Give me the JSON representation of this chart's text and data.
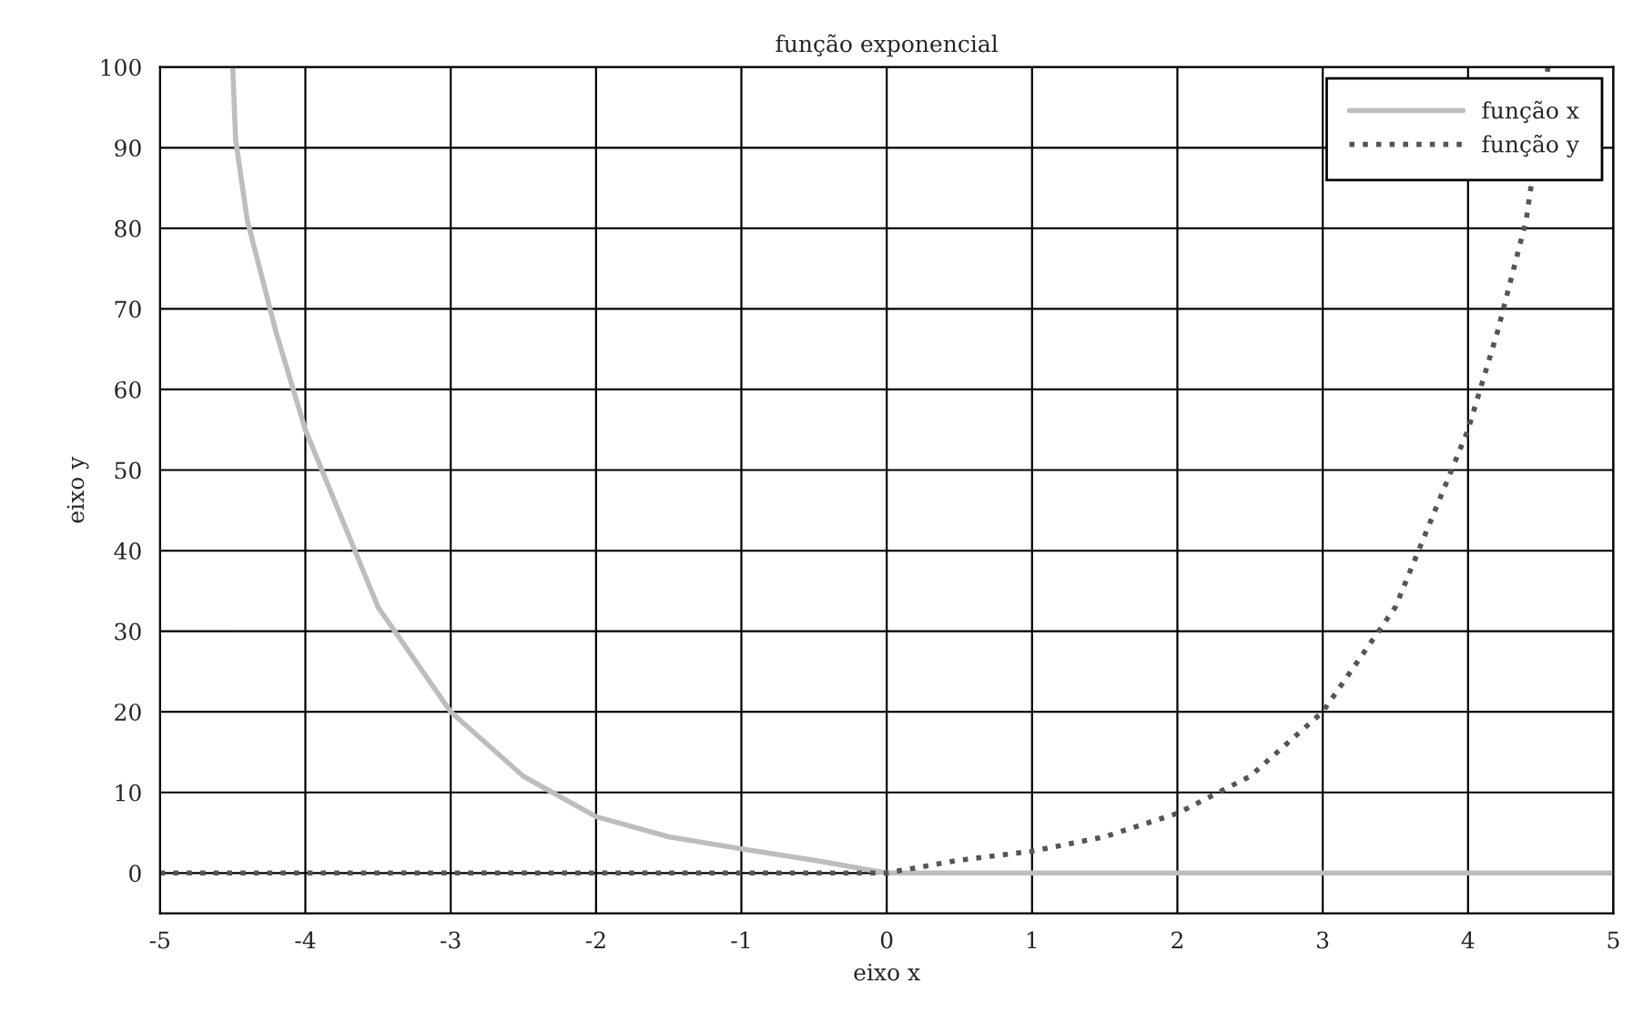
{
  "chart_data": {
    "type": "line",
    "title": "função exponencial",
    "xlabel": "eixo x",
    "ylabel": "eixo y",
    "xlim": [
      -5,
      5
    ],
    "ylim": [
      -5,
      100
    ],
    "xticks": [
      -5,
      -4,
      -3,
      -2,
      -1,
      0,
      1,
      2,
      3,
      4,
      5
    ],
    "yticks": [
      0,
      10,
      20,
      30,
      40,
      50,
      60,
      70,
      80,
      90,
      100
    ],
    "grid": true,
    "legend": "top right",
    "marker": "none",
    "series": [
      {
        "name": "função x",
        "color": "#bdbdbd",
        "line_style": "solid",
        "x": [
          -4.5,
          -4.48,
          -4.4,
          -4.2,
          -4,
          -3.5,
          -3,
          -2.5,
          -2,
          -1.5,
          -1,
          -0.5,
          0,
          1,
          2,
          3,
          4,
          5
        ],
        "values": [
          100,
          91,
          81,
          67,
          55,
          33,
          20,
          12,
          7,
          4.5,
          3,
          1.6,
          0,
          0,
          0,
          0,
          0,
          0
        ]
      },
      {
        "name": "função y",
        "color": "#555555",
        "line_style": "dotted",
        "x": [
          -5,
          -4,
          -3,
          -2,
          -1,
          0,
          0.5,
          1,
          1.5,
          2,
          2.5,
          3,
          3.5,
          4,
          4.2,
          4.4,
          4.55
        ],
        "values": [
          0,
          0,
          0,
          0,
          0,
          0,
          1.6,
          2.7,
          4.5,
          7.4,
          12,
          20,
          33,
          55,
          67,
          81,
          100
        ]
      }
    ]
  }
}
